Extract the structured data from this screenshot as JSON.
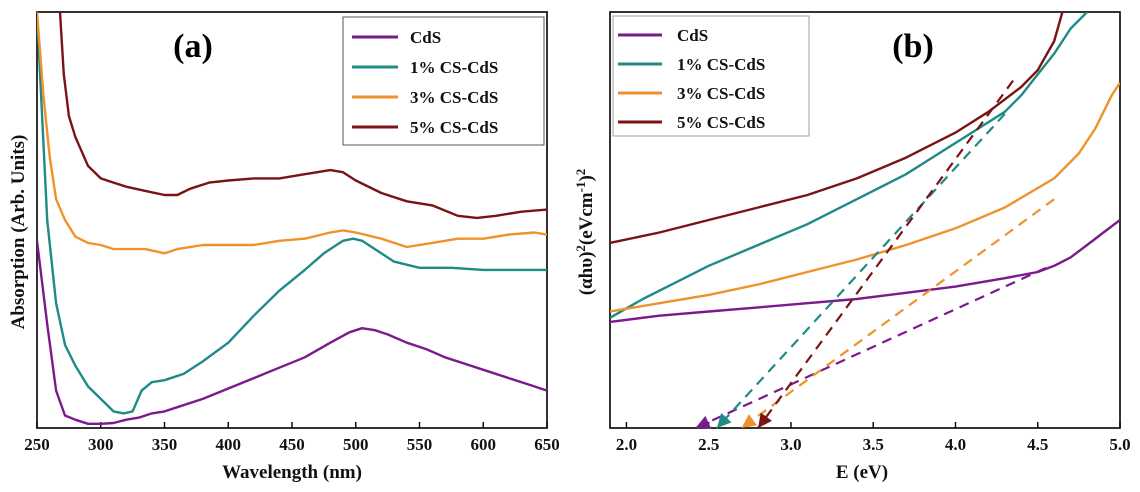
{
  "chart_data": [
    {
      "type": "line",
      "panel_label": "(a)",
      "xlabel": "Wavelength (nm)",
      "ylabel": "Absorption (Arb. Units)",
      "xlim": [
        250,
        650
      ],
      "ylim": [
        0,
        1
      ],
      "x_ticks": [
        "250",
        "300",
        "350",
        "400",
        "450",
        "500",
        "550",
        "600",
        "650"
      ],
      "y_tick_labels": false,
      "grid": false,
      "legend": "top-right",
      "series": [
        {
          "name": "CdS",
          "color": "#7b1a8c",
          "x": [
            250,
            258,
            265,
            272,
            280,
            290,
            300,
            310,
            320,
            330,
            340,
            350,
            360,
            380,
            400,
            420,
            440,
            460,
            480,
            495,
            505,
            515,
            525,
            540,
            555,
            570,
            585,
            600,
            620,
            640,
            650
          ],
          "y": [
            0.45,
            0.25,
            0.09,
            0.03,
            0.02,
            0.01,
            0.01,
            0.012,
            0.02,
            0.025,
            0.035,
            0.04,
            0.05,
            0.07,
            0.095,
            0.12,
            0.145,
            0.17,
            0.205,
            0.23,
            0.24,
            0.235,
            0.225,
            0.205,
            0.19,
            0.17,
            0.155,
            0.14,
            0.12,
            0.1,
            0.09
          ]
        },
        {
          "name": "1% CS-CdS",
          "color": "#1f8a86",
          "x": [
            250,
            258,
            265,
            272,
            280,
            290,
            300,
            310,
            318,
            325,
            332,
            340,
            350,
            365,
            380,
            400,
            420,
            440,
            460,
            475,
            490,
            498,
            505,
            515,
            530,
            550,
            575,
            600,
            630,
            650
          ],
          "y": [
            1.0,
            0.5,
            0.3,
            0.2,
            0.15,
            0.1,
            0.07,
            0.04,
            0.035,
            0.04,
            0.09,
            0.11,
            0.115,
            0.13,
            0.16,
            0.205,
            0.27,
            0.33,
            0.38,
            0.42,
            0.45,
            0.455,
            0.45,
            0.43,
            0.4,
            0.385,
            0.385,
            0.38,
            0.38,
            0.38
          ]
        },
        {
          "name": "3% CS-CdS",
          "color": "#f0922b",
          "x": [
            250,
            255,
            260,
            265,
            272,
            280,
            290,
            300,
            310,
            320,
            335,
            350,
            360,
            380,
            400,
            420,
            440,
            460,
            480,
            490,
            500,
            520,
            540,
            560,
            580,
            600,
            620,
            640,
            650
          ],
          "y": [
            1.0,
            0.8,
            0.65,
            0.55,
            0.5,
            0.46,
            0.445,
            0.44,
            0.43,
            0.43,
            0.43,
            0.42,
            0.43,
            0.44,
            0.44,
            0.44,
            0.45,
            0.455,
            0.47,
            0.475,
            0.47,
            0.455,
            0.435,
            0.445,
            0.455,
            0.455,
            0.465,
            0.47,
            0.465
          ]
        },
        {
          "name": "5% CS-CdS",
          "color": "#7a1414",
          "x": [
            268,
            271,
            275,
            280,
            290,
            300,
            310,
            320,
            335,
            350,
            360,
            370,
            385,
            400,
            420,
            440,
            460,
            480,
            490,
            500,
            520,
            540,
            560,
            580,
            595,
            610,
            630,
            650
          ],
          "y": [
            1.0,
            0.85,
            0.75,
            0.7,
            0.63,
            0.6,
            0.59,
            0.58,
            0.57,
            0.56,
            0.56,
            0.575,
            0.59,
            0.595,
            0.6,
            0.6,
            0.61,
            0.62,
            0.615,
            0.595,
            0.565,
            0.545,
            0.535,
            0.51,
            0.505,
            0.51,
            0.52,
            0.525
          ]
        }
      ]
    },
    {
      "type": "line",
      "panel_label": "(b)",
      "xlabel": "E (eV)",
      "ylabel_parts": [
        "(αhυ)",
        "2",
        "(eVcm",
        "-1",
        ")",
        "2"
      ],
      "xlim": [
        1.9,
        5.0
      ],
      "ylim": [
        0,
        1
      ],
      "x_ticks": [
        "2.0",
        "2.5",
        "3.0",
        "3.5",
        "4.0",
        "4.5",
        "5.0"
      ],
      "y_tick_labels": false,
      "grid": false,
      "legend": "top-left",
      "series": [
        {
          "name": "CdS",
          "color": "#7b1a8c",
          "x": [
            1.9,
            2.2,
            2.5,
            2.8,
            3.1,
            3.4,
            3.7,
            4.0,
            4.3,
            4.5,
            4.6,
            4.7,
            4.8,
            4.9,
            5.0
          ],
          "y": [
            0.255,
            0.27,
            0.28,
            0.29,
            0.3,
            0.31,
            0.325,
            0.34,
            0.36,
            0.375,
            0.39,
            0.41,
            0.44,
            0.47,
            0.5
          ]
        },
        {
          "name": "1% CS-CdS",
          "color": "#1f8a86",
          "x": [
            1.9,
            2.1,
            2.3,
            2.5,
            2.8,
            3.1,
            3.4,
            3.7,
            3.9,
            4.1,
            4.3,
            4.4,
            4.5,
            4.6,
            4.7,
            4.8
          ],
          "y": [
            0.265,
            0.31,
            0.35,
            0.39,
            0.44,
            0.49,
            0.55,
            0.61,
            0.66,
            0.71,
            0.76,
            0.8,
            0.85,
            0.9,
            0.96,
            1.0
          ]
        },
        {
          "name": "3% CS-CdS",
          "color": "#f0922b",
          "x": [
            1.9,
            2.2,
            2.5,
            2.8,
            3.1,
            3.4,
            3.7,
            4.0,
            4.3,
            4.6,
            4.75,
            4.85,
            4.95,
            5.0
          ],
          "y": [
            0.28,
            0.3,
            0.32,
            0.345,
            0.375,
            0.405,
            0.44,
            0.48,
            0.53,
            0.6,
            0.66,
            0.72,
            0.8,
            0.83
          ]
        },
        {
          "name": "5% CS-CdS",
          "color": "#7a1414",
          "x": [
            1.9,
            2.2,
            2.5,
            2.8,
            3.1,
            3.4,
            3.7,
            4.0,
            4.2,
            4.4,
            4.5,
            4.6,
            4.65
          ],
          "y": [
            0.445,
            0.47,
            0.5,
            0.53,
            0.56,
            0.6,
            0.65,
            0.71,
            0.76,
            0.82,
            0.86,
            0.93,
            1.0
          ]
        }
      ],
      "extrapolation_lines": [
        {
          "name": "CdS fit",
          "color": "#7b1a8c",
          "x": [
            4.55,
            2.42
          ],
          "y": [
            0.385,
            0.0
          ]
        },
        {
          "name": "1% CS-CdS fit",
          "color": "#1f8a86",
          "x": [
            4.3,
            2.55
          ],
          "y": [
            0.755,
            0.0
          ]
        },
        {
          "name": "3% CS-CdS fit",
          "color": "#f0922b",
          "x": [
            4.6,
            2.7
          ],
          "y": [
            0.55,
            0.0
          ]
        },
        {
          "name": "5% CS-CdS fit",
          "color": "#7a1414",
          "x": [
            4.35,
            2.8
          ],
          "y": [
            0.835,
            0.0
          ]
        }
      ]
    }
  ]
}
